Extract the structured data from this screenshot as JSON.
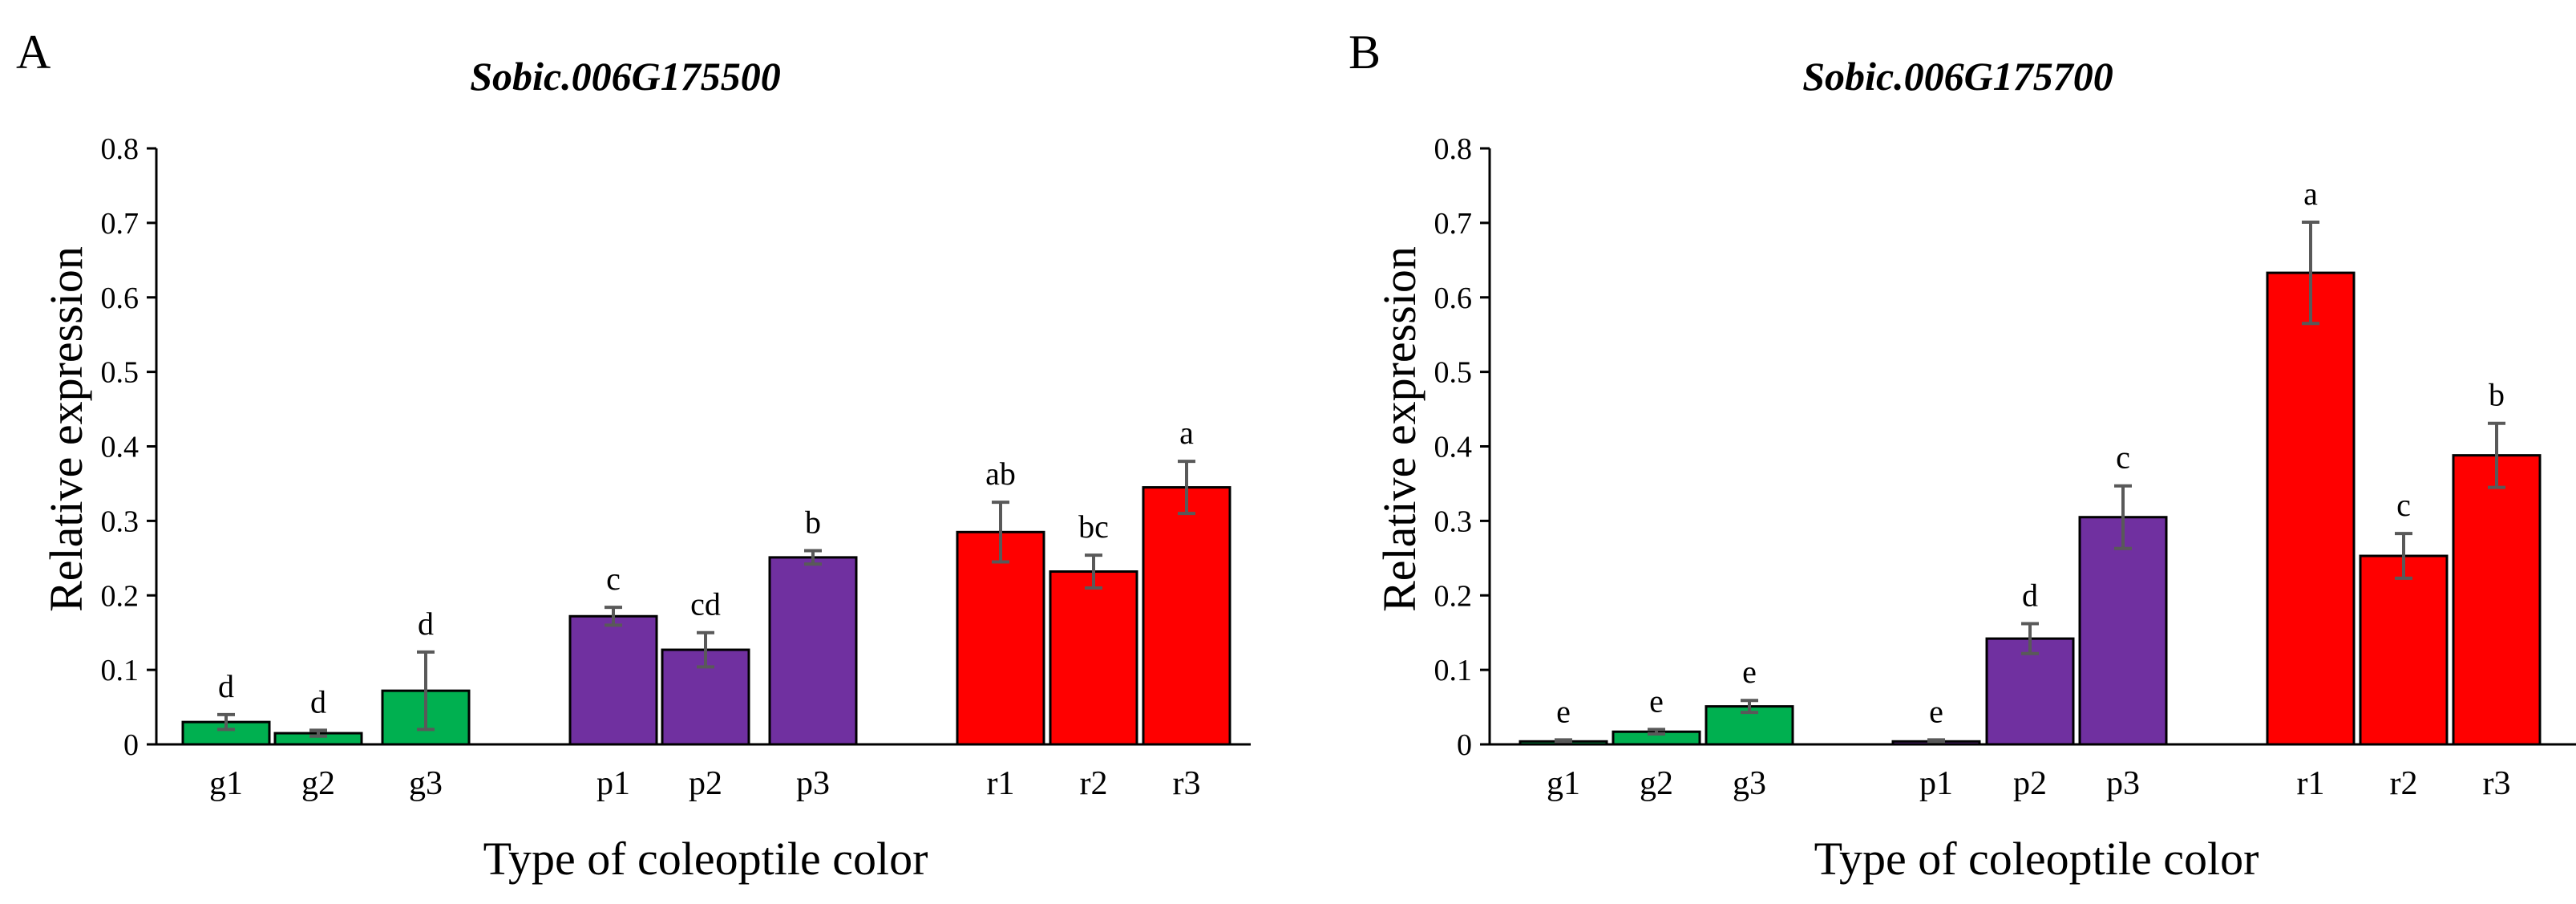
{
  "chart_data": [
    {
      "type": "bar",
      "panel": "A",
      "title": "Sobic.006G175500",
      "xlabel": "Type of coleoptile color",
      "ylabel": "Relative expression",
      "ylim": [
        0,
        0.8
      ],
      "yticks": [
        "0",
        "0.1",
        "0.2",
        "0.3",
        "0.4",
        "0.5",
        "0.6",
        "0.7",
        "0.8"
      ],
      "groups": [
        [
          "g1",
          "g2",
          "g3"
        ],
        [
          "p1",
          "p2",
          "p3"
        ],
        [
          "r1",
          "r2",
          "r3"
        ]
      ],
      "categories": [
        "g1",
        "g2",
        "g3",
        "p1",
        "p2",
        "p3",
        "r1",
        "r2",
        "r3"
      ],
      "values": [
        0.03,
        0.015,
        0.072,
        0.172,
        0.127,
        0.251,
        0.285,
        0.232,
        0.345
      ],
      "errors": [
        0.01,
        0.004,
        0.052,
        0.012,
        0.023,
        0.009,
        0.04,
        0.022,
        0.035
      ],
      "letters": [
        "d",
        "d",
        "d",
        "c",
        "cd",
        "b",
        "ab",
        "bc",
        "a"
      ],
      "colors": [
        "#00b050",
        "#00b050",
        "#00b050",
        "#7030a0",
        "#7030a0",
        "#7030a0",
        "#ff0000",
        "#ff0000",
        "#ff0000"
      ]
    },
    {
      "type": "bar",
      "panel": "B",
      "title": "Sobic.006G175700",
      "xlabel": "Type of coleoptile color",
      "ylabel": "Relative expression",
      "ylim": [
        0,
        0.8
      ],
      "yticks": [
        "0",
        "0.1",
        "0.2",
        "0.3",
        "0.4",
        "0.5",
        "0.6",
        "0.7",
        "0.8"
      ],
      "groups": [
        [
          "g1",
          "g2",
          "g3"
        ],
        [
          "p1",
          "p2",
          "p3"
        ],
        [
          "r1",
          "r2",
          "r3"
        ]
      ],
      "categories": [
        "g1",
        "g2",
        "g3",
        "p1",
        "p2",
        "p3",
        "r1",
        "r2",
        "r3"
      ],
      "values": [
        0.004,
        0.017,
        0.051,
        0.004,
        0.142,
        0.305,
        0.633,
        0.253,
        0.388
      ],
      "errors": [
        0.002,
        0.003,
        0.008,
        0.002,
        0.02,
        0.042,
        0.068,
        0.03,
        0.043
      ],
      "letters": [
        "e",
        "e",
        "e",
        "e",
        "d",
        "c",
        "a",
        "c",
        "b"
      ],
      "colors": [
        "#00b050",
        "#00b050",
        "#00b050",
        "#7030a0",
        "#7030a0",
        "#7030a0",
        "#ff0000",
        "#ff0000",
        "#ff0000"
      ]
    }
  ]
}
